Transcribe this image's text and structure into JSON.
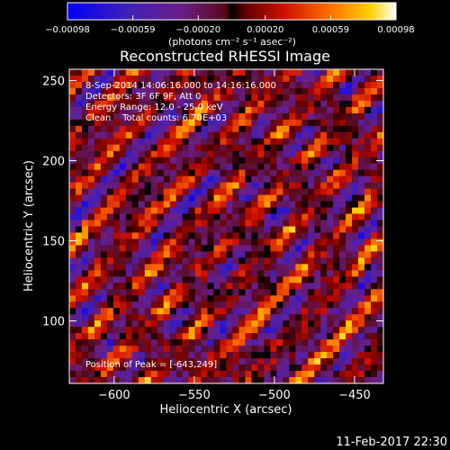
{
  "chart_data": {
    "type": "heatmap",
    "title": "Reconstructed RHESSI Image",
    "xlabel": "Heliocentric X (arcsec)",
    "ylabel": "Heliocentric Y (arcsec)",
    "xlim": [
      -628,
      -432
    ],
    "ylim": [
      61,
      257
    ],
    "x_ticks": [
      -600,
      -550,
      -500,
      -450
    ],
    "x_tick_labels": [
      "−600",
      "−550",
      "−500",
      "−450"
    ],
    "y_ticks": [
      100,
      150,
      200,
      250
    ],
    "y_tick_labels": [
      "100",
      "150",
      "200",
      "250"
    ],
    "colorbar": {
      "range": [
        -0.00098,
        0.00098
      ],
      "ticks": [
        -0.00098,
        -0.00059,
        -0.0002,
        0.0002,
        0.00059,
        0.00098
      ],
      "tick_labels": [
        "−0.00098",
        "−0.00059",
        "−0.00020",
        "0.00020",
        "0.00059",
        "0.00098"
      ],
      "unit_label": "(photons cm⁻² s⁻¹ asec⁻²)"
    },
    "annotations": [
      "8-Sep-2014 14:06:16.000 to 14:16:16.000",
      "Detectors: 3F 6F 9F, Att 0",
      "Energy Range: 12.0 - 25.0 keV",
      "Clean    Total counts: 6.70E+03"
    ],
    "peak_label": "Position of Peak = [-643,249]",
    "grid": false
  },
  "footer": {
    "date": "11-Feb-2017 22:30"
  },
  "colors": {
    "background": "#000000",
    "foreground": "#ffffff"
  }
}
